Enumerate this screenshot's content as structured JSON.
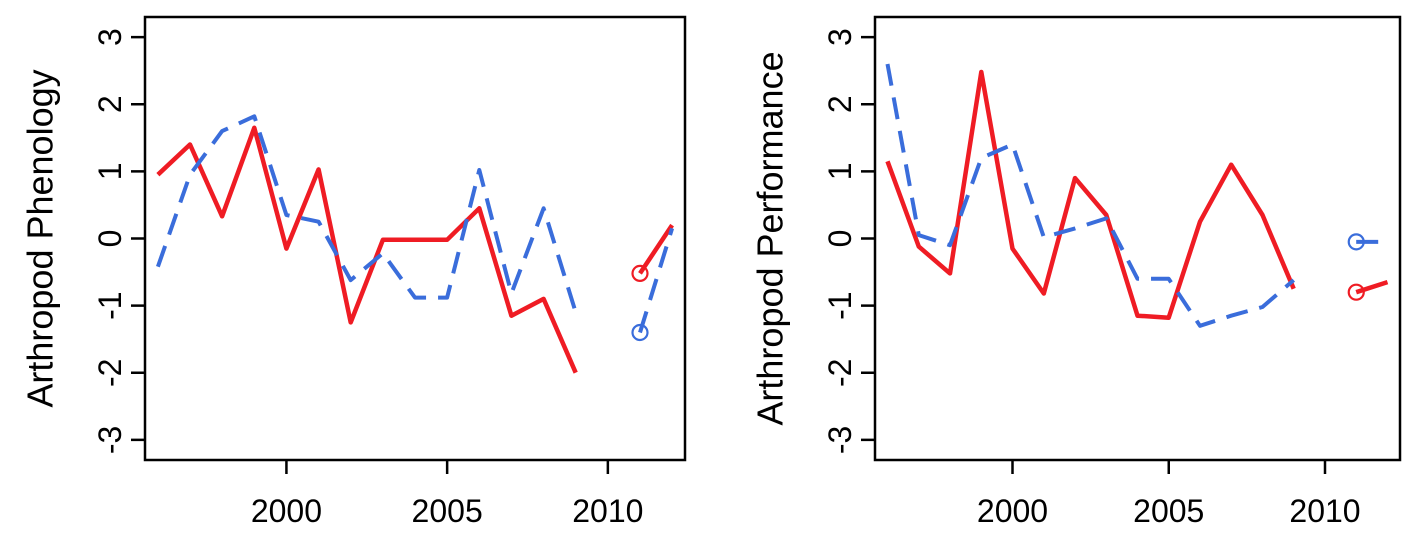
{
  "chart_data": [
    {
      "type": "line",
      "ylabel": "Arthropod Phenology",
      "xlabel": "",
      "xlim": [
        1995.6,
        2012.4
      ],
      "ylim": [
        -3.3,
        3.3
      ],
      "xticks": [
        2000,
        2005,
        2010
      ],
      "yticks": [
        -3,
        -2,
        -1,
        0,
        1,
        2,
        3
      ],
      "grid": false,
      "series": [
        {
          "color": "#ef1c24",
          "style": "solid",
          "segments": [
            [
              [
                1996,
                0.95
              ],
              [
                1997,
                1.4
              ],
              [
                1998,
                0.33
              ],
              [
                1999,
                1.65
              ],
              [
                2000,
                -0.15
              ],
              [
                2001,
                1.03
              ],
              [
                2002,
                -1.25
              ],
              [
                2003,
                -0.02
              ],
              [
                2004,
                -0.02
              ],
              [
                2005,
                -0.02
              ],
              [
                2006,
                0.45
              ],
              [
                2007,
                -1.15
              ],
              [
                2008,
                -0.9
              ],
              [
                2009,
                -2.0
              ]
            ],
            [
              [
                2011,
                -0.52
              ],
              [
                2012,
                0.2
              ]
            ]
          ],
          "markers": [
            [
              2011,
              -0.52
            ]
          ]
        },
        {
          "color": "#3a6ddb",
          "style": "dashed",
          "segments": [
            [
              [
                1996,
                -0.42
              ],
              [
                1997,
                0.95
              ],
              [
                1998,
                1.6
              ],
              [
                1999,
                1.82
              ],
              [
                2000,
                0.35
              ],
              [
                2001,
                0.25
              ],
              [
                2002,
                -0.62
              ],
              [
                2003,
                -0.22
              ],
              [
                2004,
                -0.88
              ],
              [
                2005,
                -0.88
              ],
              [
                2006,
                1.02
              ],
              [
                2007,
                -0.82
              ],
              [
                2008,
                0.45
              ],
              [
                2009,
                -1.1
              ]
            ],
            [
              [
                2011,
                -1.4
              ],
              [
                2012,
                0.15
              ]
            ]
          ],
          "markers": [
            [
              2011,
              -1.4
            ]
          ]
        }
      ]
    },
    {
      "type": "line",
      "ylabel": "Arthropod Performance",
      "xlabel": "",
      "xlim": [
        1995.6,
        2012.4
      ],
      "ylim": [
        -3.3,
        3.3
      ],
      "xticks": [
        2000,
        2005,
        2010
      ],
      "yticks": [
        -3,
        -2,
        -1,
        0,
        1,
        2,
        3
      ],
      "grid": false,
      "series": [
        {
          "color": "#ef1c24",
          "style": "solid",
          "segments": [
            [
              [
                1996,
                1.15
              ],
              [
                1997,
                -0.12
              ],
              [
                1998,
                -0.52
              ],
              [
                1999,
                2.48
              ],
              [
                2000,
                -0.15
              ],
              [
                2001,
                -0.82
              ],
              [
                2002,
                0.9
              ],
              [
                2003,
                0.35
              ],
              [
                2004,
                -1.15
              ],
              [
                2005,
                -1.18
              ],
              [
                2006,
                0.25
              ],
              [
                2007,
                1.1
              ],
              [
                2008,
                0.35
              ],
              [
                2009,
                -0.75
              ]
            ],
            [
              [
                2011,
                -0.8
              ],
              [
                2012,
                -0.65
              ]
            ]
          ],
          "markers": [
            [
              2011,
              -0.8
            ]
          ]
        },
        {
          "color": "#3a6ddb",
          "style": "dashed",
          "segments": [
            [
              [
                1996,
                2.6
              ],
              [
                1997,
                0.05
              ],
              [
                1998,
                -0.1
              ],
              [
                1999,
                1.2
              ],
              [
                2000,
                1.4
              ],
              [
                2001,
                0.02
              ],
              [
                2002,
                0.15
              ],
              [
                2003,
                0.3
              ],
              [
                2004,
                -0.6
              ],
              [
                2005,
                -0.6
              ],
              [
                2006,
                -1.3
              ],
              [
                2007,
                -1.15
              ],
              [
                2008,
                -1.02
              ],
              [
                2009,
                -0.62
              ]
            ],
            [
              [
                2011,
                -0.05
              ],
              [
                2012,
                -0.05
              ]
            ]
          ],
          "markers": [
            [
              2011,
              -0.05
            ]
          ]
        }
      ]
    }
  ]
}
